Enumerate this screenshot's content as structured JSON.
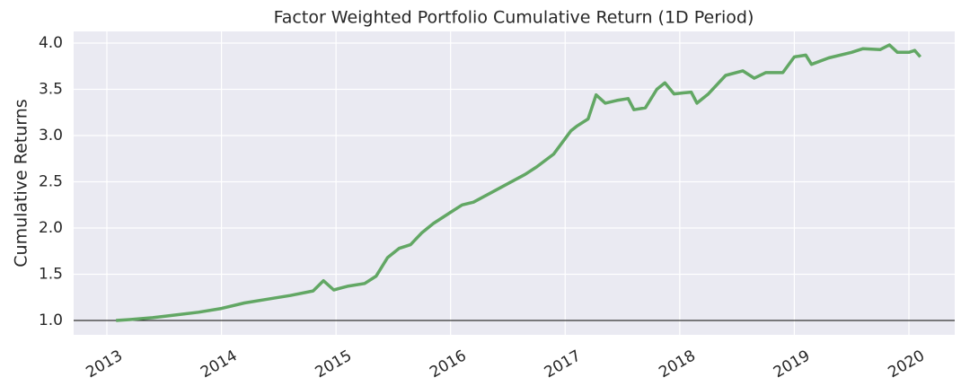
{
  "chart_data": {
    "type": "line",
    "title": "Factor Weighted Portfolio Cumulative Return (1D Period)",
    "y_label": "Cumulative Returns",
    "x": [
      2013.08,
      2013.2,
      2013.4,
      2013.6,
      2013.8,
      2014.0,
      2014.2,
      2014.4,
      2014.6,
      2014.8,
      2014.89,
      2014.98,
      2015.1,
      2015.25,
      2015.35,
      2015.45,
      2015.55,
      2015.65,
      2015.75,
      2015.85,
      2016.0,
      2016.1,
      2016.2,
      2016.35,
      2016.5,
      2016.65,
      2016.75,
      2016.9,
      2017.05,
      2017.1,
      2017.2,
      2017.27,
      2017.35,
      2017.45,
      2017.55,
      2017.6,
      2017.7,
      2017.8,
      2017.87,
      2017.95,
      2018.1,
      2018.15,
      2018.25,
      2018.4,
      2018.55,
      2018.65,
      2018.75,
      2018.9,
      2019.0,
      2019.1,
      2019.15,
      2019.3,
      2019.5,
      2019.6,
      2019.75,
      2019.83,
      2019.9,
      2020.0,
      2020.05,
      2020.1
    ],
    "series": [
      {
        "name": "Cumulative Returns",
        "color": "#62a764",
        "values": [
          1.0,
          1.01,
          1.03,
          1.06,
          1.09,
          1.13,
          1.19,
          1.23,
          1.27,
          1.32,
          1.43,
          1.33,
          1.37,
          1.4,
          1.48,
          1.68,
          1.78,
          1.82,
          1.95,
          2.05,
          2.17,
          2.25,
          2.28,
          2.38,
          2.48,
          2.58,
          2.66,
          2.8,
          3.05,
          3.1,
          3.18,
          3.44,
          3.35,
          3.38,
          3.4,
          3.28,
          3.3,
          3.5,
          3.57,
          3.45,
          3.47,
          3.35,
          3.45,
          3.65,
          3.7,
          3.62,
          3.68,
          3.68,
          3.85,
          3.87,
          3.77,
          3.84,
          3.9,
          3.94,
          3.93,
          3.98,
          3.9,
          3.9,
          3.92,
          3.85
        ]
      }
    ],
    "baseline": 1.0,
    "xlim": [
      2012.71,
      2020.4
    ],
    "xticks": [
      2013,
      2014,
      2015,
      2016,
      2017,
      2018,
      2019,
      2020
    ],
    "ylim": [
      0.845,
      4.126
    ],
    "yticks": [
      {
        "value": 1.0,
        "label": "1.0"
      },
      {
        "value": 1.5,
        "label": "1.5"
      },
      {
        "value": 2.0,
        "label": "2.0"
      },
      {
        "value": 2.5,
        "label": "2.5"
      },
      {
        "value": 3.0,
        "label": "3.0"
      },
      {
        "value": 3.5,
        "label": "3.5"
      },
      {
        "value": 4.0,
        "label": "4.0"
      }
    ],
    "grid": true
  }
}
